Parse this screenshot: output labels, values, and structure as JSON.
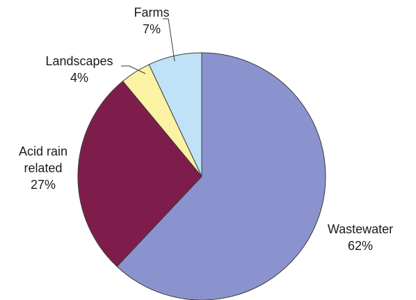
{
  "chart_data": {
    "type": "pie",
    "title": "",
    "slices": [
      {
        "name": "Wastewater",
        "label_lines": [
          "Wastewater"
        ],
        "pct_text": "62%",
        "value": 62,
        "color": "#8b93cf"
      },
      {
        "name": "Acid rain related",
        "label_lines": [
          "Acid rain",
          "related"
        ],
        "pct_text": "27%",
        "value": 27,
        "color": "#7e1d4b"
      },
      {
        "name": "Landscapes",
        "label_lines": [
          "Landscapes"
        ],
        "pct_text": "4%",
        "value": 4,
        "color": "#fbf2a4"
      },
      {
        "name": "Farms",
        "label_lines": [
          "Farms"
        ],
        "pct_text": "7%",
        "value": 7,
        "color": "#bfe2f7"
      }
    ],
    "start_angle_deg": 0,
    "direction": "clockwise"
  }
}
